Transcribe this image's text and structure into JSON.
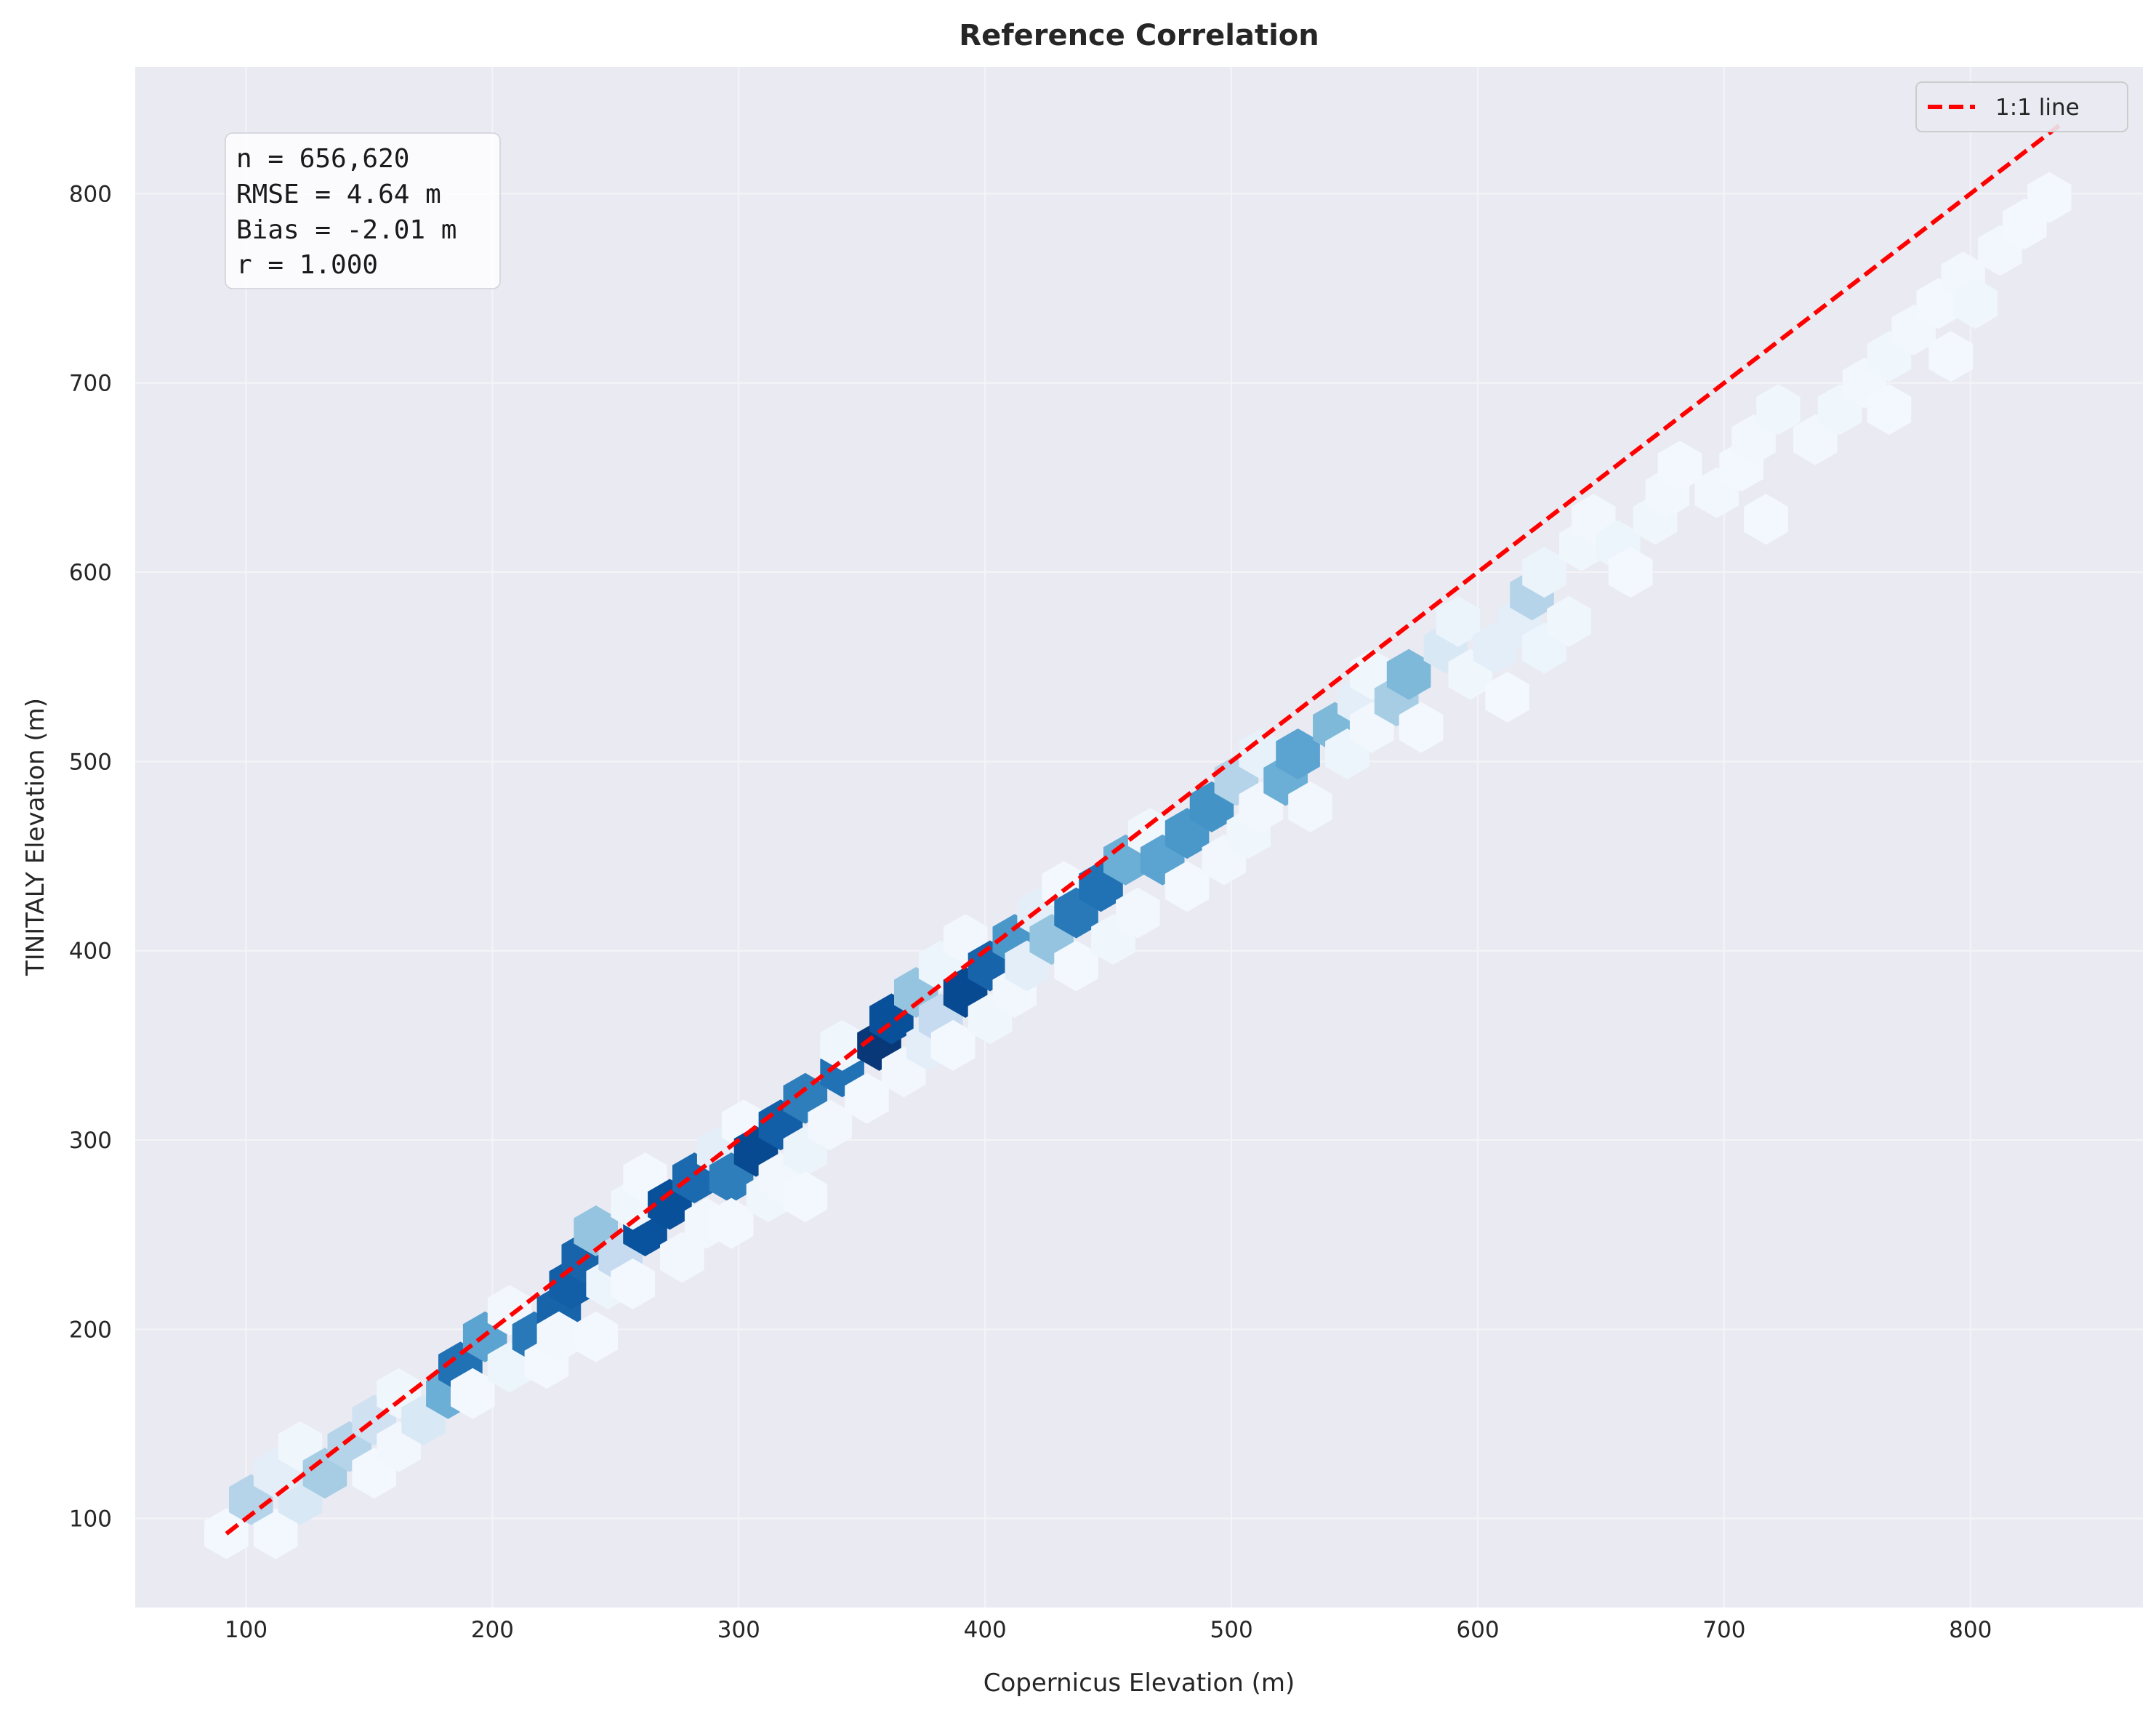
{
  "chart_data": {
    "type": "hexbin",
    "title": "Reference Correlation",
    "xlabel": "Copernicus Elevation (m)",
    "ylabel": "TINITALY Elevation (m)",
    "xlim": [
      55,
      870
    ],
    "ylim": [
      53,
      867
    ],
    "xticks": [
      100,
      200,
      300,
      400,
      500,
      600,
      700,
      800
    ],
    "yticks": [
      100,
      200,
      300,
      400,
      500,
      600,
      700,
      800
    ],
    "grid": true,
    "colormap": "Blues",
    "stats": [
      "n = 656,620",
      "RMSE = 4.64 m",
      "Bias = -2.01 m",
      "r = 1.000"
    ],
    "legend": {
      "placement": "top-right",
      "entries": [
        {
          "label": "1:1 line",
          "color": "#ff0000",
          "style": "dashed"
        }
      ]
    },
    "reference_line": {
      "name": "1:1 line",
      "x": [
        92,
        836
      ],
      "y": [
        92,
        836
      ]
    },
    "hex_bins": [
      [
        92,
        92,
        0.02
      ],
      [
        112,
        92,
        0.02
      ],
      [
        102,
        110,
        0.3
      ],
      [
        122,
        110,
        0.15
      ],
      [
        112,
        124,
        0.1
      ],
      [
        122,
        138,
        0.04
      ],
      [
        132,
        124,
        0.35
      ],
      [
        142,
        138,
        0.3
      ],
      [
        152,
        152,
        0.2
      ],
      [
        152,
        124,
        0.02
      ],
      [
        162,
        138,
        0.03
      ],
      [
        162,
        166,
        0.04
      ],
      [
        172,
        152,
        0.15
      ],
      [
        182,
        166,
        0.5
      ],
      [
        187,
        180,
        0.75
      ],
      [
        197,
        196,
        0.55
      ],
      [
        192,
        166,
        0.02
      ],
      [
        207,
        180,
        0.05
      ],
      [
        207,
        210,
        0.03
      ],
      [
        217,
        196,
        0.72
      ],
      [
        227,
        210,
        0.8
      ],
      [
        232,
        224,
        0.82
      ],
      [
        237,
        238,
        0.8
      ],
      [
        222,
        182,
        0.02
      ],
      [
        227,
        196,
        0.03
      ],
      [
        242,
        196,
        0.02
      ],
      [
        242,
        252,
        0.4
      ],
      [
        247,
        224,
        0.05
      ],
      [
        252,
        238,
        0.25
      ],
      [
        257,
        224,
        0.02
      ],
      [
        262,
        252,
        0.87
      ],
      [
        257,
        266,
        0.04
      ],
      [
        262,
        280,
        0.02
      ],
      [
        272,
        266,
        0.88
      ],
      [
        277,
        238,
        0.03
      ],
      [
        282,
        280,
        0.78
      ],
      [
        287,
        256,
        0.03
      ],
      [
        292,
        294,
        0.1
      ],
      [
        297,
        280,
        0.7
      ],
      [
        297,
        256,
        0.02
      ],
      [
        302,
        308,
        0.02
      ],
      [
        307,
        294,
        0.9
      ],
      [
        312,
        270,
        0.04
      ],
      [
        317,
        308,
        0.82
      ],
      [
        317,
        280,
        0.03
      ],
      [
        327,
        322,
        0.7
      ],
      [
        327,
        294,
        0.06
      ],
      [
        327,
        270,
        0.02
      ],
      [
        337,
        308,
        0.03
      ],
      [
        342,
        336,
        0.75
      ],
      [
        342,
        350,
        0.04
      ],
      [
        352,
        322,
        0.02
      ],
      [
        357,
        350,
        0.97
      ],
      [
        362,
        364,
        0.88
      ],
      [
        367,
        336,
        0.03
      ],
      [
        372,
        378,
        0.4
      ],
      [
        377,
        350,
        0.1
      ],
      [
        382,
        364,
        0.25
      ],
      [
        382,
        392,
        0.05
      ],
      [
        387,
        350,
        0.02
      ],
      [
        392,
        378,
        0.9
      ],
      [
        392,
        406,
        0.03
      ],
      [
        402,
        392,
        0.8
      ],
      [
        402,
        364,
        0.04
      ],
      [
        412,
        406,
        0.6
      ],
      [
        412,
        378,
        0.03
      ],
      [
        417,
        392,
        0.1
      ],
      [
        422,
        420,
        0.1
      ],
      [
        427,
        406,
        0.4
      ],
      [
        432,
        434,
        0.02
      ],
      [
        437,
        420,
        0.72
      ],
      [
        437,
        392,
        0.02
      ],
      [
        447,
        434,
        0.75
      ],
      [
        452,
        406,
        0.04
      ],
      [
        457,
        448,
        0.5
      ],
      [
        462,
        420,
        0.03
      ],
      [
        467,
        462,
        0.04
      ],
      [
        472,
        448,
        0.55
      ],
      [
        482,
        462,
        0.6
      ],
      [
        482,
        434,
        0.02
      ],
      [
        492,
        476,
        0.62
      ],
      [
        497,
        448,
        0.03
      ],
      [
        502,
        490,
        0.3
      ],
      [
        507,
        462,
        0.04
      ],
      [
        512,
        504,
        0.08
      ],
      [
        512,
        476,
        0.03
      ],
      [
        522,
        490,
        0.5
      ],
      [
        527,
        504,
        0.55
      ],
      [
        532,
        476,
        0.03
      ],
      [
        542,
        518,
        0.45
      ],
      [
        547,
        504,
        0.05
      ],
      [
        552,
        532,
        0.1
      ],
      [
        557,
        546,
        0.04
      ],
      [
        557,
        518,
        0.03
      ],
      [
        567,
        532,
        0.35
      ],
      [
        572,
        546,
        0.45
      ],
      [
        577,
        518,
        0.02
      ],
      [
        587,
        560,
        0.15
      ],
      [
        592,
        574,
        0.06
      ],
      [
        597,
        546,
        0.04
      ],
      [
        607,
        560,
        0.1
      ],
      [
        612,
        534,
        0.02
      ],
      [
        617,
        574,
        0.1
      ],
      [
        622,
        588,
        0.3
      ],
      [
        627,
        600,
        0.06
      ],
      [
        627,
        560,
        0.05
      ],
      [
        637,
        574,
        0.04
      ],
      [
        642,
        614,
        0.04
      ],
      [
        647,
        628,
        0.03
      ],
      [
        657,
        614,
        0.05
      ],
      [
        662,
        600,
        0.02
      ],
      [
        672,
        628,
        0.04
      ],
      [
        677,
        642,
        0.03
      ],
      [
        682,
        656,
        0.02
      ],
      [
        697,
        642,
        0.03
      ],
      [
        707,
        656,
        0.02
      ],
      [
        712,
        670,
        0.03
      ],
      [
        717,
        628,
        0.02
      ],
      [
        722,
        686,
        0.04
      ],
      [
        737,
        670,
        0.03
      ],
      [
        747,
        686,
        0.04
      ],
      [
        757,
        700,
        0.03
      ],
      [
        767,
        714,
        0.04
      ],
      [
        767,
        686,
        0.02
      ],
      [
        777,
        728,
        0.03
      ],
      [
        787,
        742,
        0.02
      ],
      [
        792,
        714,
        0.02
      ],
      [
        797,
        756,
        0.03
      ],
      [
        802,
        742,
        0.04
      ],
      [
        812,
        770,
        0.03
      ],
      [
        822,
        784,
        0.02
      ],
      [
        832,
        798,
        0.02
      ]
    ]
  }
}
